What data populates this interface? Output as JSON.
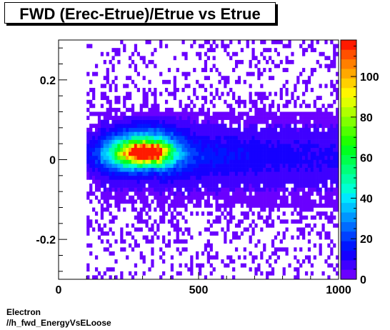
{
  "title": "FWD (Erec-Etrue)/Etrue vs Etrue",
  "footer": {
    "line1": "Electron",
    "line2": "//h_fwd_EnergyVsELoose"
  },
  "chart_data": {
    "type": "heatmap",
    "title": "FWD (Erec-Etrue)/Etrue vs Etrue",
    "xlabel": "",
    "ylabel": "",
    "xlim": [
      0,
      1000
    ],
    "ylim": [
      -0.3,
      0.3
    ],
    "zlim": [
      0,
      118
    ],
    "x_ticks": [
      0,
      500,
      1000
    ],
    "y_ticks": [
      -0.2,
      0,
      0.2
    ],
    "y_tick_labels": [
      "-0.2",
      "0",
      "0.2"
    ],
    "z_ticks": [
      0,
      20,
      40,
      60,
      80,
      100
    ],
    "x_bins": 100,
    "y_bins": 60,
    "palette": [
      "#6a00ff",
      "#3f00ff",
      "#1500ff",
      "#0016ff",
      "#0040ff",
      "#006bff",
      "#0096ff",
      "#00c1ff",
      "#00e8ff",
      "#00ffd2",
      "#00ffa6",
      "#00ff79",
      "#00ff4c",
      "#00ff1f",
      "#20ff00",
      "#50ff00",
      "#80ff00",
      "#b0ff00",
      "#dfff00",
      "#fff600",
      "#ffd000",
      "#ffa800",
      "#ff7f00",
      "#ff5000",
      "#ff1a00"
    ],
    "peak": {
      "x": 310,
      "y": 0.018,
      "value": 118
    },
    "structure": "dense core near x=310,y=0.02; band along y~0 extending to x=1000; upper lobe near x=320,y=0.06; sparse noise over full range"
  }
}
